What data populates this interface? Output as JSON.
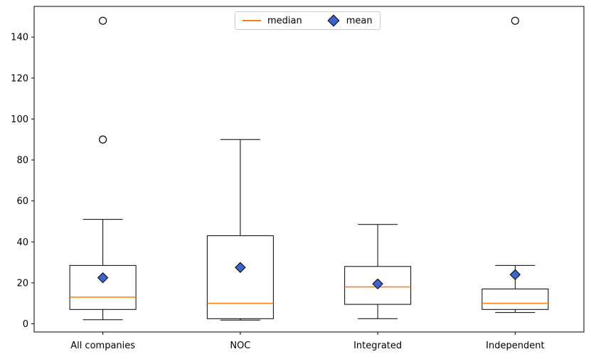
{
  "figure": {
    "background": "#ffffff"
  },
  "legend": {
    "items": [
      {
        "label": "median",
        "swatch": "orange-line",
        "color": "#ff7f0e"
      },
      {
        "label": "mean",
        "swatch": "blue-diamond",
        "fill": "#3D64C8",
        "edge": "#000000"
      }
    ]
  },
  "chart_data": {
    "type": "boxplot",
    "title": "",
    "xlabel": "",
    "ylabel": "",
    "categories": [
      "All companies",
      "NOC",
      "Integrated",
      "Independent"
    ],
    "series": [
      {
        "category": "All companies",
        "whisker_low": 2,
        "q1": 7,
        "median": 13,
        "q3": 28.5,
        "whisker_high": 51,
        "mean": 22.5,
        "outliers": [
          90,
          148
        ]
      },
      {
        "category": "NOC",
        "whisker_low": 1.8,
        "q1": 2.5,
        "median": 10,
        "q3": 43,
        "whisker_high": 90,
        "mean": 27.5,
        "outliers": []
      },
      {
        "category": "Integrated",
        "whisker_low": 2.5,
        "q1": 9.5,
        "median": 18,
        "q3": 28,
        "whisker_high": 48.5,
        "mean": 19.5,
        "outliers": []
      },
      {
        "category": "Independent",
        "whisker_low": 5.5,
        "q1": 7,
        "median": 10,
        "q3": 17,
        "whisker_high": 28.5,
        "mean": 24,
        "outliers": [
          148
        ]
      }
    ],
    "yticks": [
      0,
      20,
      40,
      60,
      80,
      100,
      120,
      140
    ],
    "ylim": [
      -4,
      155
    ],
    "grid": false,
    "legend_position": "upper center",
    "box_edge_color": "#000000",
    "box_fill_color": "#ffffff",
    "median_color": "#ff7f0e",
    "mean_marker": {
      "shape": "diamond",
      "fill": "#3D64C8",
      "edge": "#000000"
    },
    "outlier_marker": {
      "shape": "circle",
      "fill": "none",
      "edge": "#000000"
    }
  }
}
